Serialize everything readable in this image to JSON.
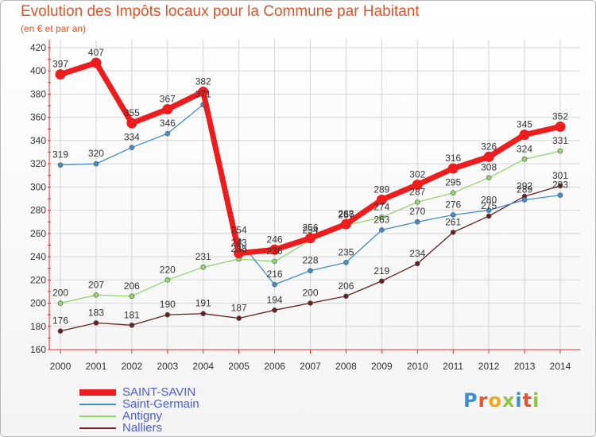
{
  "header": {
    "title": "Evolution des Impôts locaux pour la Commune par Habitant",
    "subtitle": "(en € et par an)"
  },
  "logo": {
    "text": "Proxiti",
    "letter_colors": [
      "#3a8fd8",
      "#e8532b",
      "#f2a81d",
      "#8cc63e",
      "#3a8fd8",
      "#e8532b",
      "#8cc63e"
    ]
  },
  "chart_data": {
    "type": "line",
    "title": "Evolution des Impôts locaux pour la Commune par Habitant",
    "subtitle": "(en € et par an)",
    "x": [
      "2000",
      "2001",
      "2002",
      "2003",
      "2004",
      "2005",
      "2006",
      "2007",
      "2008",
      "2009",
      "2010",
      "2011",
      "2012",
      "2013",
      "2014"
    ],
    "ylim": [
      160,
      420
    ],
    "yticks": [
      160,
      180,
      200,
      220,
      240,
      260,
      280,
      300,
      320,
      340,
      360,
      380,
      400,
      420
    ],
    "grid": true,
    "legend": "bottom-left",
    "series": [
      {
        "name": "SAINT-SAVIN",
        "color": "#ee1c1c",
        "values": [
          397,
          407,
          355,
          367,
          382,
          243,
          246,
          256,
          268,
          289,
          302,
          316,
          326,
          345,
          352
        ]
      },
      {
        "name": "Saint-Germain",
        "color": "#3e8ed0",
        "values": [
          319,
          320,
          334,
          346,
          371,
          254,
          216,
          228,
          235,
          263,
          270,
          276,
          280,
          289,
          293
        ]
      },
      {
        "name": "Antigny",
        "color": "#8ed86a",
        "values": [
          200,
          207,
          206,
          220,
          231,
          238,
          236,
          254,
          267,
          274,
          287,
          295,
          308,
          324,
          331
        ]
      },
      {
        "name": "Nalliers",
        "color": "#6b1f1f",
        "values": [
          176,
          183,
          181,
          190,
          191,
          187,
          194,
          200,
          206,
          219,
          234,
          261,
          275,
          292,
          301
        ]
      }
    ]
  }
}
